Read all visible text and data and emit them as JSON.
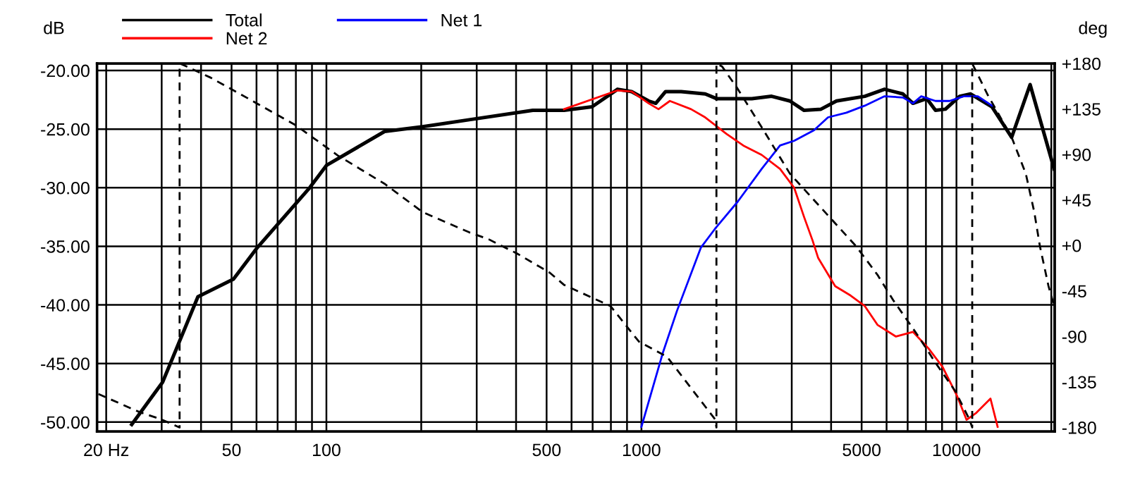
{
  "chart_data": {
    "type": "line",
    "ylabel": "dB",
    "y2label": "deg",
    "log": "x",
    "grid": true,
    "legend": "top",
    "line_style": "solid",
    "xlim": [
      18.7,
      20500
    ],
    "ylim": [
      -50.8,
      -19.4
    ],
    "y2lim": [
      -184,
      180
    ],
    "xticks": [
      {
        "value": 20,
        "label": "20 Hz"
      },
      {
        "value": 30,
        "label": null
      },
      {
        "value": 40,
        "label": null
      },
      50,
      {
        "value": 60,
        "label": null
      },
      {
        "value": 70,
        "label": null
      },
      {
        "value": 80,
        "label": null
      },
      {
        "value": 90,
        "label": null
      },
      100,
      {
        "value": 200,
        "label": null
      },
      {
        "value": 300,
        "label": null
      },
      {
        "value": 400,
        "label": null
      },
      500,
      {
        "value": 600,
        "label": null
      },
      {
        "value": 700,
        "label": null
      },
      {
        "value": 800,
        "label": null
      },
      {
        "value": 900,
        "label": null
      },
      1000,
      {
        "value": 2000,
        "label": null
      },
      {
        "value": 3000,
        "label": null
      },
      {
        "value": 4000,
        "label": null
      },
      5000,
      {
        "value": 6000,
        "label": null
      },
      {
        "value": 7000,
        "label": null
      },
      {
        "value": 8000,
        "label": null
      },
      {
        "value": 9000,
        "label": null
      },
      10000,
      {
        "value": 20000,
        "label": null
      }
    ],
    "yticks": [
      {
        "value": -20,
        "label": "-20.00"
      },
      {
        "value": -25,
        "label": "-25.00"
      },
      {
        "value": -30,
        "label": "-30.00"
      },
      {
        "value": -35,
        "label": "-35.00"
      },
      {
        "value": -40,
        "label": "-40.00"
      },
      {
        "value": -45,
        "label": "-45.00"
      },
      {
        "value": -50,
        "label": "-50.00"
      }
    ],
    "y2ticks": [
      {
        "value": 180,
        "label": "+180"
      },
      {
        "value": 135,
        "label": "+135"
      },
      {
        "value": 90,
        "label": "+90"
      },
      {
        "value": 45,
        "label": "+45"
      },
      {
        "value": 0,
        "label": "+0"
      },
      -45,
      -90,
      -135,
      -180
    ],
    "series": [
      {
        "name": "Total",
        "color": "#000000",
        "x": [
          24.1,
          30.2,
          39.1,
          50.7,
          60.4,
          88.5,
          100,
          153,
          202,
          284,
          452,
          568,
          697,
          840,
          931,
          1054,
          1110,
          1193,
          1337,
          1594,
          1731,
          2241,
          2590,
          2960,
          3283,
          3715,
          4161,
          5117,
          5912,
          6761,
          7275,
          8054,
          8578,
          9226,
          10233,
          11096,
          12967,
          14970,
          17130,
          20420
        ],
        "values": [
          -50.2,
          -46.6,
          -39.3,
          -37.8,
          -35.1,
          -30.0,
          -28.1,
          -25.2,
          -24.8,
          -24.2,
          -23.4,
          -23.4,
          -23.1,
          -21.6,
          -21.8,
          -22.6,
          -22.8,
          -21.8,
          -21.8,
          -22.0,
          -22.4,
          -22.4,
          -22.2,
          -22.6,
          -23.4,
          -23.3,
          -22.6,
          -22.2,
          -21.6,
          -22.0,
          -22.8,
          -22.4,
          -23.4,
          -23.3,
          -22.2,
          -22.0,
          -23.1,
          -25.7,
          -21.2,
          -28.4
        ]
      },
      {
        "name": "Net 2",
        "color": "#ff0000",
        "x": [
          568,
          840,
          931,
          1054,
          1133,
          1231,
          1437,
          1594,
          1861,
          2105,
          2408,
          2754,
          3053,
          3283,
          3493,
          3640,
          4121,
          4613,
          5117,
          5613,
          6427,
          7275,
          8147,
          9036,
          10017,
          10764,
          11568,
          12823,
          13510
        ],
        "values": [
          -23.3,
          -21.7,
          -21.8,
          -22.8,
          -23.3,
          -22.6,
          -23.3,
          -24.0,
          -25.4,
          -26.4,
          -27.2,
          -28.4,
          -30.0,
          -32.5,
          -34.5,
          -36.0,
          -38.4,
          -39.2,
          -40.1,
          -41.7,
          -42.7,
          -42.3,
          -43.7,
          -45.3,
          -47.7,
          -49.8,
          -49.2,
          -48.0,
          -50.4
        ]
      },
      {
        "name": "Net 1",
        "color": "#0000ff",
        "x": [
          1000,
          1169,
          1297,
          1545,
          1713,
          2020,
          2408,
          2754,
          3053,
          3530,
          3911,
          4473,
          5117,
          5912,
          6761,
          7275,
          7730,
          8578,
          9506,
          10544,
          11690,
          12967
        ],
        "values": [
          -50.4,
          -44.1,
          -40.5,
          -35.1,
          -33.5,
          -31.2,
          -28.4,
          -26.4,
          -26.0,
          -25.1,
          -24.0,
          -23.6,
          -23.0,
          -22.2,
          -22.3,
          -22.8,
          -22.2,
          -22.6,
          -22.6,
          -22.2,
          -22.2,
          -23.0
        ]
      },
      {
        "color": "#000000",
        "axis": "y2",
        "line_style": "dashed",
        "x": [
          18.9,
          25.6,
          29.9,
          34.2,
          34.2,
          36.0,
          42.9,
          56.7,
          79.8,
          108.7,
          153,
          202,
          284,
          328,
          403,
          512,
          568,
          798,
          981,
          1205,
          1713,
          1730,
          1730,
          1803,
          2020,
          2408,
          2960,
          4809,
          5613,
          6295,
          7499,
          8578,
          9908,
          10990,
          11220,
          11220,
          12560,
          14970,
          16600,
          17660,
          18410,
          19590,
          20420
        ],
        "values": [
          -147,
          -165,
          -172,
          -180,
          180,
          177,
          166,
          145,
          119,
          89,
          61,
          33,
          13,
          6,
          -8,
          -27,
          -39,
          -60,
          -95,
          -110,
          -172,
          -180,
          180,
          177,
          155,
          117,
          71,
          -1,
          -29,
          -54,
          -88,
          -116,
          -144,
          -172,
          -180,
          180,
          149,
          107,
          71,
          33,
          -1,
          -40,
          -60
        ]
      }
    ]
  }
}
